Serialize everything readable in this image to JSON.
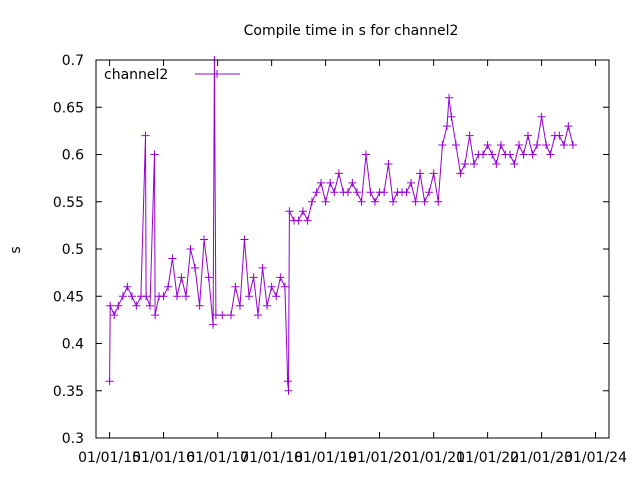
{
  "chart_data": {
    "type": "line",
    "title": "Compile time in s for channel2",
    "xlabel": "",
    "ylabel": "s",
    "ylim": [
      0.3,
      0.7
    ],
    "yticks": [
      "0.3",
      "0.35",
      "0.4",
      "0.45",
      "0.5",
      "0.55",
      "0.6",
      "0.65",
      "0.7"
    ],
    "xticks": [
      "01/01/15",
      "01/01/16",
      "01/01/17",
      "01/01/18",
      "01/01/19",
      "01/01/20",
      "01/01/21",
      "01/01/22",
      "01/01/23",
      "01/01/24"
    ],
    "xlim": [
      "2014-10-01",
      "2024-04-01"
    ],
    "grid": false,
    "legend_position": "top-left",
    "color": "#9400d3",
    "series": [
      {
        "name": "channel2",
        "points": [
          [
            "2015-01-01",
            0.36
          ],
          [
            "2015-01-05",
            0.44
          ],
          [
            "2015-02-01",
            0.43
          ],
          [
            "2015-03-01",
            0.44
          ],
          [
            "2015-04-01",
            0.45
          ],
          [
            "2015-05-01",
            0.46
          ],
          [
            "2015-06-01",
            0.45
          ],
          [
            "2015-07-01",
            0.44
          ],
          [
            "2015-08-01",
            0.45
          ],
          [
            "2015-09-01",
            0.62
          ],
          [
            "2015-09-05",
            0.45
          ],
          [
            "2015-10-01",
            0.44
          ],
          [
            "2015-11-01",
            0.6
          ],
          [
            "2015-11-05",
            0.43
          ],
          [
            "2015-12-01",
            0.45
          ],
          [
            "2016-01-01",
            0.45
          ],
          [
            "2016-02-01",
            0.46
          ],
          [
            "2016-03-01",
            0.49
          ],
          [
            "2016-04-01",
            0.45
          ],
          [
            "2016-05-01",
            0.47
          ],
          [
            "2016-06-01",
            0.45
          ],
          [
            "2016-07-01",
            0.5
          ],
          [
            "2016-08-01",
            0.48
          ],
          [
            "2016-09-01",
            0.44
          ],
          [
            "2016-10-01",
            0.51
          ],
          [
            "2016-11-01",
            0.47
          ],
          [
            "2016-12-01",
            0.42
          ],
          [
            "2016-12-10",
            0.7
          ],
          [
            "2016-12-20",
            0.43
          ],
          [
            "2017-02-01",
            0.43
          ],
          [
            "2017-04-01",
            0.43
          ],
          [
            "2017-05-01",
            0.46
          ],
          [
            "2017-06-01",
            0.44
          ],
          [
            "2017-07-01",
            0.51
          ],
          [
            "2017-08-01",
            0.45
          ],
          [
            "2017-09-01",
            0.47
          ],
          [
            "2017-10-01",
            0.43
          ],
          [
            "2017-11-01",
            0.48
          ],
          [
            "2017-12-01",
            0.44
          ],
          [
            "2018-01-01",
            0.46
          ],
          [
            "2018-02-01",
            0.45
          ],
          [
            "2018-03-01",
            0.47
          ],
          [
            "2018-04-01",
            0.46
          ],
          [
            "2018-04-20",
            0.36
          ],
          [
            "2018-04-25",
            0.35
          ],
          [
            "2018-05-01",
            0.54
          ],
          [
            "2018-06-01",
            0.53
          ],
          [
            "2018-07-01",
            0.53
          ],
          [
            "2018-08-01",
            0.54
          ],
          [
            "2018-09-01",
            0.53
          ],
          [
            "2018-10-01",
            0.55
          ],
          [
            "2018-11-01",
            0.56
          ],
          [
            "2018-12-01",
            0.57
          ],
          [
            "2019-01-01",
            0.55
          ],
          [
            "2019-02-01",
            0.57
          ],
          [
            "2019-03-01",
            0.56
          ],
          [
            "2019-04-01",
            0.58
          ],
          [
            "2019-05-01",
            0.56
          ],
          [
            "2019-06-01",
            0.56
          ],
          [
            "2019-07-01",
            0.57
          ],
          [
            "2019-08-01",
            0.56
          ],
          [
            "2019-09-01",
            0.55
          ],
          [
            "2019-10-01",
            0.6
          ],
          [
            "2019-11-01",
            0.56
          ],
          [
            "2019-12-01",
            0.55
          ],
          [
            "2020-01-01",
            0.56
          ],
          [
            "2020-02-01",
            0.56
          ],
          [
            "2020-03-01",
            0.59
          ],
          [
            "2020-04-01",
            0.55
          ],
          [
            "2020-05-01",
            0.56
          ],
          [
            "2020-06-01",
            0.56
          ],
          [
            "2020-07-01",
            0.56
          ],
          [
            "2020-08-01",
            0.57
          ],
          [
            "2020-09-01",
            0.55
          ],
          [
            "2020-10-01",
            0.58
          ],
          [
            "2020-11-01",
            0.55
          ],
          [
            "2020-12-01",
            0.56
          ],
          [
            "2021-01-01",
            0.58
          ],
          [
            "2021-02-01",
            0.55
          ],
          [
            "2021-03-01",
            0.61
          ],
          [
            "2021-04-01",
            0.63
          ],
          [
            "2021-04-15",
            0.66
          ],
          [
            "2021-05-01",
            0.64
          ],
          [
            "2021-06-01",
            0.61
          ],
          [
            "2021-07-01",
            0.58
          ],
          [
            "2021-08-01",
            0.59
          ],
          [
            "2021-09-01",
            0.62
          ],
          [
            "2021-10-01",
            0.59
          ],
          [
            "2021-11-01",
            0.6
          ],
          [
            "2021-12-01",
            0.6
          ],
          [
            "2022-01-01",
            0.61
          ],
          [
            "2022-02-01",
            0.6
          ],
          [
            "2022-03-01",
            0.59
          ],
          [
            "2022-04-01",
            0.61
          ],
          [
            "2022-05-01",
            0.6
          ],
          [
            "2022-06-01",
            0.6
          ],
          [
            "2022-07-01",
            0.59
          ],
          [
            "2022-08-01",
            0.61
          ],
          [
            "2022-09-01",
            0.6
          ],
          [
            "2022-10-01",
            0.62
          ],
          [
            "2022-11-01",
            0.6
          ],
          [
            "2022-12-01",
            0.61
          ],
          [
            "2023-01-01",
            0.64
          ],
          [
            "2023-02-01",
            0.61
          ],
          [
            "2023-03-01",
            0.6
          ],
          [
            "2023-04-01",
            0.62
          ],
          [
            "2023-05-01",
            0.62
          ],
          [
            "2023-06-01",
            0.61
          ],
          [
            "2023-07-01",
            0.63
          ],
          [
            "2023-08-01",
            0.61
          ]
        ]
      }
    ]
  }
}
